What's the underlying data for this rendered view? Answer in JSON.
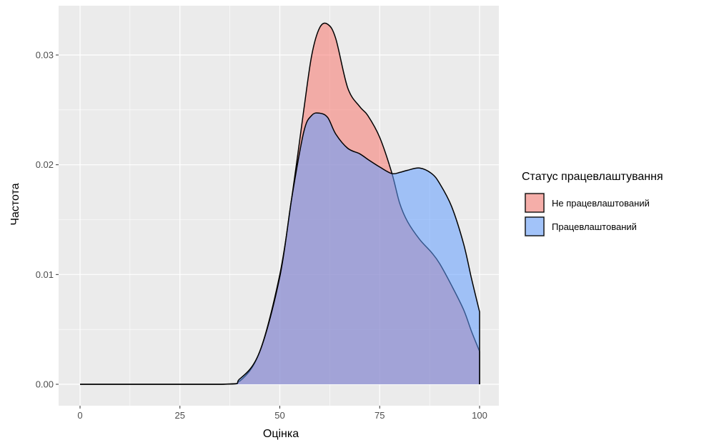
{
  "chart_data": {
    "type": "area",
    "xlabel": "Оцінка",
    "ylabel": "Частота",
    "xlim": [
      0,
      100
    ],
    "ylim": [
      0,
      0.033
    ],
    "x_ticks": [
      0,
      25,
      50,
      75,
      100
    ],
    "x_tick_labels": [
      "0",
      "25",
      "50",
      "75",
      "100"
    ],
    "y_ticks": [
      0,
      0.01,
      0.02,
      0.03
    ],
    "y_tick_labels": [
      "0.00",
      "0.01",
      "0.02",
      "0.03"
    ],
    "grid": true,
    "legend": {
      "title": "Статус працевлаштування",
      "position": "right"
    },
    "series": [
      {
        "name": "Не працевлаштований",
        "color": "#F8766D",
        "x": [
          0,
          35,
          40,
          45,
          50,
          53,
          56,
          58,
          60,
          62,
          64,
          67,
          70,
          72,
          75,
          78,
          80,
          82,
          85,
          88,
          90,
          93,
          96,
          98,
          100
        ],
        "y": [
          0,
          0,
          0.0003,
          0.003,
          0.01,
          0.017,
          0.025,
          0.03,
          0.0325,
          0.0328,
          0.0315,
          0.027,
          0.0253,
          0.0245,
          0.0225,
          0.0193,
          0.0165,
          0.0148,
          0.0132,
          0.012,
          0.011,
          0.009,
          0.0068,
          0.0048,
          0.003
        ]
      },
      {
        "name": "Працевлаштований",
        "color": "#619CFF",
        "x": [
          0,
          35,
          40,
          45,
          50,
          53,
          56,
          58,
          60,
          62,
          64,
          67,
          70,
          72,
          75,
          78,
          80,
          82,
          85,
          88,
          90,
          93,
          96,
          98,
          100
        ],
        "y": [
          0,
          0,
          0.0005,
          0.003,
          0.0098,
          0.017,
          0.023,
          0.0245,
          0.0247,
          0.0243,
          0.0228,
          0.0215,
          0.021,
          0.0205,
          0.0198,
          0.0192,
          0.0193,
          0.0195,
          0.0197,
          0.0192,
          0.0183,
          0.0162,
          0.0128,
          0.0096,
          0.0066
        ]
      }
    ]
  }
}
